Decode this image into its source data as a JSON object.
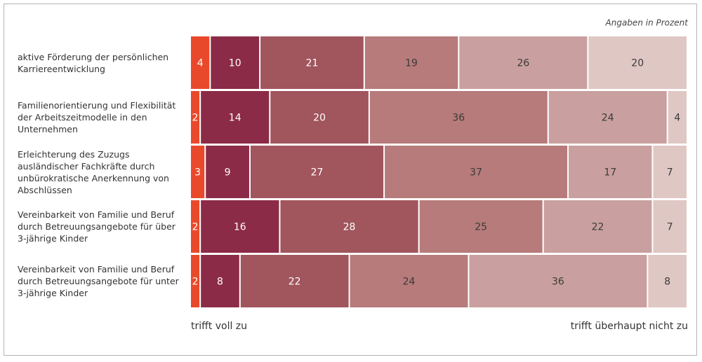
{
  "chart_data": {
    "type": "stacked-bar-horizontal",
    "annotation": "Angaben in Prozent",
    "scale_start_label": "trifft voll zu",
    "scale_end_label": "trifft überhaupt nicht zu",
    "categories": [
      "aktive Förderung der persönlichen Karriereentwicklung",
      "Familienorientierung und Flexibilität der Arbeitszeitmodelle in den Unternehmen",
      "Erleichterung des Zuzugs ausländischer Fachkräfte durch unbürokratische Anerkennung von Abschlüssen",
      "Vereinbarkeit von Familie und Beruf durch Betreuungsangebote für über 3-jährige Kinder",
      "Vereinbarkeit von Familie und Beruf durch Betreuungsangebote für unter 3-jährige Kinder"
    ],
    "series": [
      {
        "color": "#e9492b",
        "values": [
          4,
          2,
          3,
          2,
          2
        ]
      },
      {
        "color": "#8c2b47",
        "values": [
          10,
          14,
          9,
          16,
          8
        ]
      },
      {
        "color": "#a1555d",
        "values": [
          21,
          20,
          27,
          28,
          22
        ]
      },
      {
        "color": "#b67b7a",
        "values": [
          19,
          36,
          37,
          25,
          24
        ]
      },
      {
        "color": "#c9a09f",
        "values": [
          26,
          24,
          17,
          22,
          36
        ]
      },
      {
        "color": "#dfc7c4",
        "values": [
          20,
          4,
          7,
          7,
          8
        ]
      }
    ],
    "xlim": [
      0,
      100
    ]
  }
}
